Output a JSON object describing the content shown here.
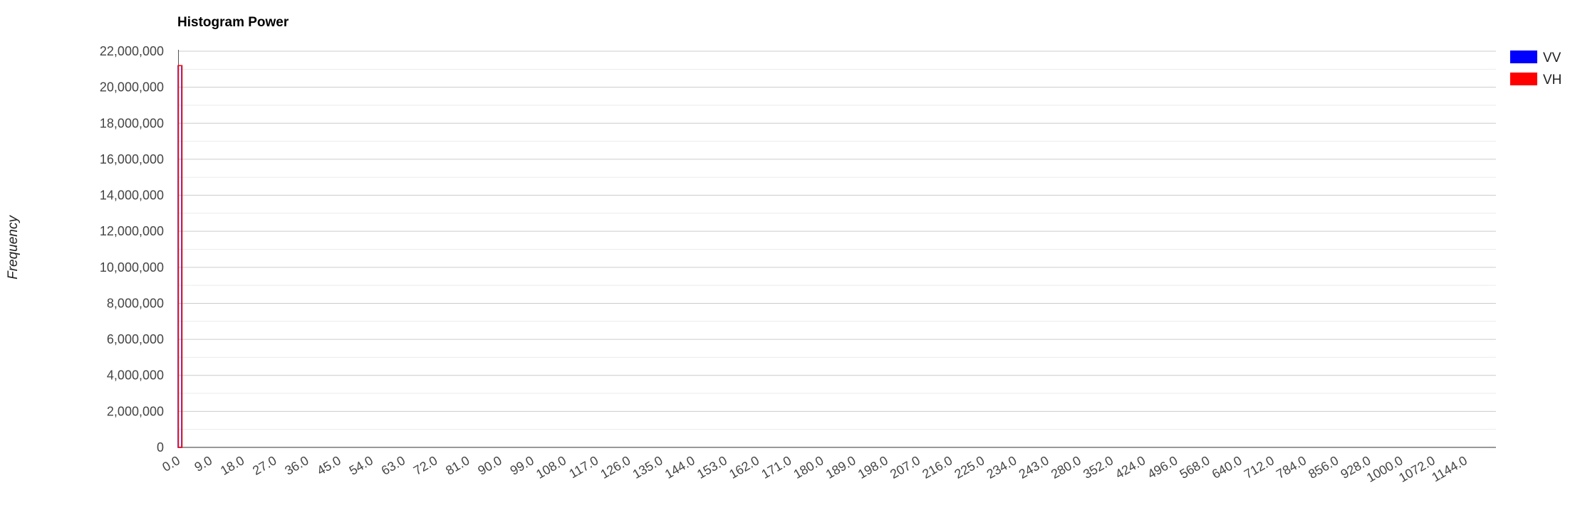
{
  "chart_data": {
    "type": "bar",
    "title": "Histogram Power",
    "xlabel": "",
    "ylabel": "Frequency",
    "ylim": [
      0,
      22000000
    ],
    "y_ticks": [
      "0",
      "2,000,000",
      "4,000,000",
      "6,000,000",
      "8,000,000",
      "10,000,000",
      "12,000,000",
      "14,000,000",
      "16,000,000",
      "18,000,000",
      "20,000,000",
      "22,000,000"
    ],
    "x_tick_labels": [
      "0.0",
      "9.0",
      "18.0",
      "27.0",
      "36.0",
      "45.0",
      "54.0",
      "63.0",
      "72.0",
      "81.0",
      "90.0",
      "99.0",
      "108.0",
      "117.0",
      "126.0",
      "135.0",
      "144.0",
      "153.0",
      "162.0",
      "171.0",
      "180.0",
      "189.0",
      "198.0",
      "207.0",
      "216.0",
      "225.0",
      "234.0",
      "243.0",
      "280.0",
      "352.0",
      "424.0",
      "496.0",
      "568.0",
      "640.0",
      "712.0",
      "784.0",
      "856.0",
      "928.0",
      "1000.0",
      "1072.0",
      "1144.0"
    ],
    "grid": true,
    "legend_position": "top-right",
    "series": [
      {
        "name": "VV",
        "color": "#0000ff",
        "bins": [
          {
            "x": "0.0",
            "value": 21200000
          }
        ]
      },
      {
        "name": "VH",
        "color": "#ff0000",
        "bins": [
          {
            "x": "0.0",
            "value": 21200000
          }
        ]
      }
    ]
  }
}
